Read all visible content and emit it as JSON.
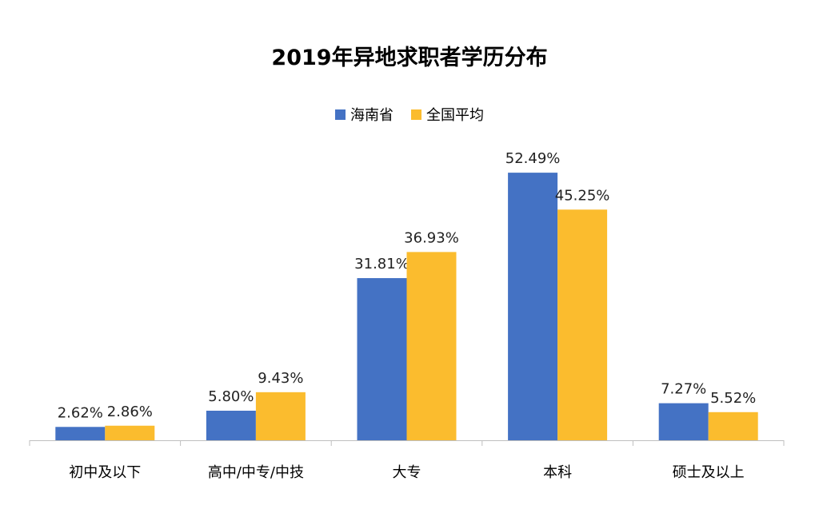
{
  "chart_data": {
    "type": "bar",
    "title": "2019年异地求职者学历分布",
    "categories": [
      "初中及以下",
      "高中/中专/中技",
      "大专",
      "本科",
      "硕士及以上"
    ],
    "series": [
      {
        "name": "海南省",
        "color": "#4472C4",
        "values": [
          2.62,
          5.8,
          31.81,
          52.49,
          7.27
        ],
        "labels": [
          "2.62%",
          "5.80%",
          "31.81%",
          "52.49%",
          "7.27%"
        ]
      },
      {
        "name": "全国平均",
        "color": "#FBBC2E",
        "values": [
          2.86,
          9.43,
          36.93,
          45.25,
          5.52
        ],
        "labels": [
          "2.86%",
          "9.43%",
          "36.93%",
          "45.25%",
          "5.52%"
        ]
      }
    ],
    "xlabel": "",
    "ylabel": "",
    "ylim": [
      0,
      60
    ],
    "grid": false,
    "legend_position": "top"
  }
}
